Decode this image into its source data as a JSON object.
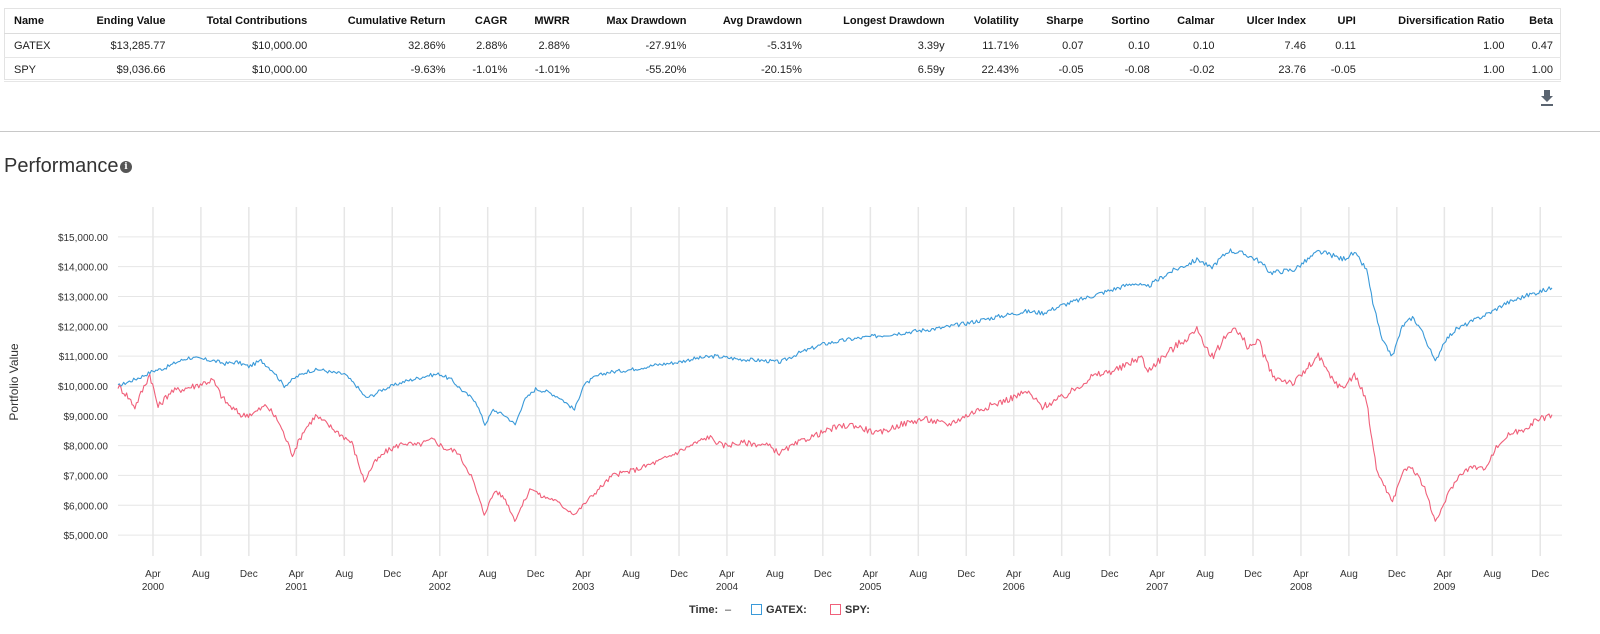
{
  "metrics_table": {
    "columns": [
      "Name",
      "Ending Value",
      "Total Contributions",
      "Cumulative Return",
      "CAGR",
      "MWRR",
      "Max Drawdown",
      "Avg Drawdown",
      "Longest Drawdown",
      "Volatility",
      "Sharpe",
      "Sortino",
      "Calmar",
      "Ulcer Index",
      "UPI",
      "Diversification Ratio",
      "Beta"
    ],
    "rows": [
      [
        "GATEX",
        "$13,285.77",
        "$10,000.00",
        "32.86%",
        "2.88%",
        "2.88%",
        "-27.91%",
        "-5.31%",
        "3.39y",
        "11.71%",
        "0.07",
        "0.10",
        "0.10",
        "7.46",
        "0.11",
        "1.00",
        "0.47"
      ],
      [
        "SPY",
        "$9,036.66",
        "$10,000.00",
        "-9.63%",
        "-1.01%",
        "-1.01%",
        "-55.20%",
        "-20.15%",
        "6.59y",
        "22.43%",
        "-0.05",
        "-0.08",
        "-0.02",
        "23.76",
        "-0.05",
        "1.00",
        "1.00"
      ]
    ]
  },
  "download_icon": "download-icon",
  "section": {
    "title": "Performance",
    "info_icon": "i"
  },
  "legend": {
    "time_label": "Time:",
    "time_value": "–",
    "gatex_label": "GATEX:",
    "spy_label": "SPY:"
  },
  "chart_data": {
    "type": "line",
    "ylabel": "Portfolio Value",
    "xlabel": "",
    "ylim": [
      4500,
      16000
    ],
    "y_ticks": [
      5000,
      6000,
      7000,
      8000,
      9000,
      10000,
      11000,
      12000,
      13000,
      14000,
      15000
    ],
    "y_tick_labels": [
      "$5,000.00",
      "$6,000.00",
      "$7,000.00",
      "$8,000.00",
      "$9,000.00",
      "$10,000.00",
      "$11,000.00",
      "$12,000.00",
      "$13,000.00",
      "$14,000.00",
      "$15,000.00"
    ],
    "x_range": [
      "2000-01-03",
      "2009-12-31"
    ],
    "x_ticks": [
      {
        "date": "2000-04-01",
        "month": "Apr",
        "year": "2000"
      },
      {
        "date": "2000-08-01",
        "month": "Aug",
        "year": ""
      },
      {
        "date": "2000-12-01",
        "month": "Dec",
        "year": ""
      },
      {
        "date": "2001-04-01",
        "month": "Apr",
        "year": "2001"
      },
      {
        "date": "2001-08-01",
        "month": "Aug",
        "year": ""
      },
      {
        "date": "2001-12-01",
        "month": "Dec",
        "year": ""
      },
      {
        "date": "2002-04-01",
        "month": "Apr",
        "year": "2002"
      },
      {
        "date": "2002-08-01",
        "month": "Aug",
        "year": ""
      },
      {
        "date": "2002-12-01",
        "month": "Dec",
        "year": ""
      },
      {
        "date": "2003-04-01",
        "month": "Apr",
        "year": "2003"
      },
      {
        "date": "2003-08-01",
        "month": "Aug",
        "year": ""
      },
      {
        "date": "2003-12-01",
        "month": "Dec",
        "year": ""
      },
      {
        "date": "2004-04-01",
        "month": "Apr",
        "year": "2004"
      },
      {
        "date": "2004-08-01",
        "month": "Aug",
        "year": ""
      },
      {
        "date": "2004-12-01",
        "month": "Dec",
        "year": ""
      },
      {
        "date": "2005-04-01",
        "month": "Apr",
        "year": "2005"
      },
      {
        "date": "2005-08-01",
        "month": "Aug",
        "year": ""
      },
      {
        "date": "2005-12-01",
        "month": "Dec",
        "year": ""
      },
      {
        "date": "2006-04-01",
        "month": "Apr",
        "year": "2006"
      },
      {
        "date": "2006-08-01",
        "month": "Aug",
        "year": ""
      },
      {
        "date": "2006-12-01",
        "month": "Dec",
        "year": ""
      },
      {
        "date": "2007-04-01",
        "month": "Apr",
        "year": "2007"
      },
      {
        "date": "2007-08-01",
        "month": "Aug",
        "year": ""
      },
      {
        "date": "2007-12-01",
        "month": "Dec",
        "year": ""
      },
      {
        "date": "2008-04-01",
        "month": "Apr",
        "year": "2008"
      },
      {
        "date": "2008-08-01",
        "month": "Aug",
        "year": ""
      },
      {
        "date": "2008-12-01",
        "month": "Dec",
        "year": ""
      },
      {
        "date": "2009-04-01",
        "month": "Apr",
        "year": "2009"
      },
      {
        "date": "2009-08-01",
        "month": "Aug",
        "year": ""
      },
      {
        "date": "2009-12-01",
        "month": "Dec",
        "year": ""
      }
    ],
    "grid": true,
    "legend_position": "bottom-center",
    "series": [
      {
        "name": "GATEX",
        "color": "#3a9ad9",
        "points": [
          [
            "2000-01-03",
            10000
          ],
          [
            "2000-02-01",
            10150
          ],
          [
            "2000-03-01",
            10300
          ],
          [
            "2000-04-01",
            10500
          ],
          [
            "2000-05-01",
            10600
          ],
          [
            "2000-06-01",
            10800
          ],
          [
            "2000-07-01",
            10950
          ],
          [
            "2000-08-01",
            10900
          ],
          [
            "2000-09-01",
            10850
          ],
          [
            "2000-10-01",
            10750
          ],
          [
            "2000-11-01",
            10800
          ],
          [
            "2000-12-01",
            10650
          ],
          [
            "2001-01-01",
            10850
          ],
          [
            "2001-02-01",
            10500
          ],
          [
            "2001-03-01",
            10000
          ],
          [
            "2001-04-01",
            10300
          ],
          [
            "2001-05-01",
            10500
          ],
          [
            "2001-06-01",
            10550
          ],
          [
            "2001-07-01",
            10450
          ],
          [
            "2001-08-01",
            10400
          ],
          [
            "2001-09-01",
            10000
          ],
          [
            "2001-09-25",
            9600
          ],
          [
            "2001-10-15",
            9700
          ],
          [
            "2001-11-01",
            9850
          ],
          [
            "2001-12-01",
            10000
          ],
          [
            "2002-01-01",
            10150
          ],
          [
            "2002-02-01",
            10250
          ],
          [
            "2002-03-01",
            10350
          ],
          [
            "2002-04-01",
            10400
          ],
          [
            "2002-05-01",
            10200
          ],
          [
            "2002-06-01",
            9800
          ],
          [
            "2002-07-01",
            9500
          ],
          [
            "2002-07-25",
            8700
          ],
          [
            "2002-08-15",
            9200
          ],
          [
            "2002-09-15",
            9000
          ],
          [
            "2002-10-10",
            8700
          ],
          [
            "2002-11-01",
            9500
          ],
          [
            "2002-12-01",
            9900
          ],
          [
            "2003-01-01",
            9800
          ],
          [
            "2003-02-01",
            9600
          ],
          [
            "2003-03-10",
            9200
          ],
          [
            "2003-04-01",
            10000
          ],
          [
            "2003-05-01",
            10300
          ],
          [
            "2003-06-01",
            10450
          ],
          [
            "2003-08-01",
            10550
          ],
          [
            "2003-10-01",
            10700
          ],
          [
            "2003-12-01",
            10800
          ],
          [
            "2004-01-01",
            10900
          ],
          [
            "2004-03-01",
            11000
          ],
          [
            "2004-05-01",
            10900
          ],
          [
            "2004-07-01",
            10850
          ],
          [
            "2004-08-15",
            10800
          ],
          [
            "2004-10-01",
            11100
          ],
          [
            "2004-12-01",
            11400
          ],
          [
            "2005-02-01",
            11550
          ],
          [
            "2005-04-01",
            11650
          ],
          [
            "2005-06-01",
            11750
          ],
          [
            "2005-08-01",
            11850
          ],
          [
            "2005-10-01",
            11950
          ],
          [
            "2005-12-01",
            12100
          ],
          [
            "2006-03-01",
            12350
          ],
          [
            "2006-05-01",
            12500
          ],
          [
            "2006-06-15",
            12450
          ],
          [
            "2006-08-01",
            12700
          ],
          [
            "2006-10-01",
            12950
          ],
          [
            "2006-12-01",
            13200
          ],
          [
            "2007-02-01",
            13450
          ],
          [
            "2007-03-05",
            13300
          ],
          [
            "2007-05-01",
            13800
          ],
          [
            "2007-07-15",
            14250
          ],
          [
            "2007-08-15",
            13950
          ],
          [
            "2007-10-01",
            14550
          ],
          [
            "2007-11-15",
            14400
          ],
          [
            "2007-12-15",
            14200
          ],
          [
            "2008-01-15",
            13800
          ],
          [
            "2008-03-15",
            13900
          ],
          [
            "2008-05-15",
            14500
          ],
          [
            "2008-06-15",
            14400
          ],
          [
            "2008-07-15",
            14250
          ],
          [
            "2008-08-15",
            14450
          ],
          [
            "2008-09-15",
            13900
          ],
          [
            "2008-10-01",
            12800
          ],
          [
            "2008-10-25",
            11500
          ],
          [
            "2008-11-20",
            11000
          ],
          [
            "2008-12-15",
            12000
          ],
          [
            "2009-01-10",
            12300
          ],
          [
            "2009-02-01",
            11900
          ],
          [
            "2009-03-09",
            10800
          ],
          [
            "2009-04-01",
            11500
          ],
          [
            "2009-05-01",
            11900
          ],
          [
            "2009-06-01",
            12100
          ],
          [
            "2009-07-01",
            12300
          ],
          [
            "2009-08-01",
            12500
          ],
          [
            "2009-09-01",
            12750
          ],
          [
            "2009-10-01",
            12900
          ],
          [
            "2009-11-01",
            13050
          ],
          [
            "2009-12-31",
            13286
          ]
        ]
      },
      {
        "name": "SPY",
        "color": "#f0607a",
        "points": [
          [
            "2000-01-03",
            10000
          ],
          [
            "2000-01-25",
            9700
          ],
          [
            "2000-02-15",
            9300
          ],
          [
            "2000-03-24",
            10400
          ],
          [
            "2000-04-14",
            9300
          ],
          [
            "2000-05-15",
            9800
          ],
          [
            "2000-06-15",
            9900
          ],
          [
            "2000-07-15",
            10000
          ],
          [
            "2000-08-31",
            10200
          ],
          [
            "2000-09-25",
            9600
          ],
          [
            "2000-10-15",
            9300
          ],
          [
            "2000-11-15",
            9000
          ],
          [
            "2000-12-15",
            9100
          ],
          [
            "2001-01-15",
            9350
          ],
          [
            "2001-02-15",
            8800
          ],
          [
            "2001-03-22",
            7700
          ],
          [
            "2001-04-20",
            8500
          ],
          [
            "2001-05-20",
            9000
          ],
          [
            "2001-06-20",
            8700
          ],
          [
            "2001-07-20",
            8400
          ],
          [
            "2001-08-20",
            8100
          ],
          [
            "2001-09-21",
            6800
          ],
          [
            "2001-10-15",
            7400
          ],
          [
            "2001-11-15",
            7800
          ],
          [
            "2001-12-31",
            8100
          ],
          [
            "2002-01-31",
            8000
          ],
          [
            "2002-03-15",
            8200
          ],
          [
            "2002-04-15",
            7900
          ],
          [
            "2002-05-15",
            7800
          ],
          [
            "2002-06-20",
            7000
          ],
          [
            "2002-07-23",
            5700
          ],
          [
            "2002-08-20",
            6500
          ],
          [
            "2002-09-15",
            6200
          ],
          [
            "2002-10-09",
            5500
          ],
          [
            "2002-11-20",
            6600
          ],
          [
            "2002-12-15",
            6300
          ],
          [
            "2003-01-15",
            6200
          ],
          [
            "2003-02-15",
            5900
          ],
          [
            "2003-03-11",
            5700
          ],
          [
            "2003-04-15",
            6200
          ],
          [
            "2003-05-15",
            6600
          ],
          [
            "2003-06-15",
            7000
          ],
          [
            "2003-08-15",
            7200
          ],
          [
            "2003-10-15",
            7500
          ],
          [
            "2003-12-31",
            8000
          ],
          [
            "2004-02-15",
            8300
          ],
          [
            "2004-03-20",
            8000
          ],
          [
            "2004-05-15",
            8100
          ],
          [
            "2004-07-15",
            8000
          ],
          [
            "2004-08-12",
            7750
          ],
          [
            "2004-10-15",
            8200
          ],
          [
            "2004-12-31",
            8600
          ],
          [
            "2005-02-15",
            8700
          ],
          [
            "2005-04-20",
            8400
          ],
          [
            "2005-06-15",
            8700
          ],
          [
            "2005-08-15",
            8900
          ],
          [
            "2005-10-15",
            8700
          ],
          [
            "2005-12-31",
            9200
          ],
          [
            "2006-02-15",
            9400
          ],
          [
            "2006-05-05",
            9800
          ],
          [
            "2006-06-13",
            9300
          ],
          [
            "2006-08-15",
            9700
          ],
          [
            "2006-10-15",
            10300
          ],
          [
            "2006-12-31",
            10600
          ],
          [
            "2007-02-20",
            11000
          ],
          [
            "2007-03-05",
            10500
          ],
          [
            "2007-05-15",
            11300
          ],
          [
            "2007-07-15",
            11900
          ],
          [
            "2007-08-15",
            10900
          ],
          [
            "2007-10-10",
            12000
          ],
          [
            "2007-11-20",
            11300
          ],
          [
            "2007-12-15",
            11500
          ],
          [
            "2008-01-20",
            10300
          ],
          [
            "2008-03-15",
            10100
          ],
          [
            "2008-05-15",
            11000
          ],
          [
            "2008-06-15",
            10300
          ],
          [
            "2008-07-15",
            9900
          ],
          [
            "2008-08-15",
            10400
          ],
          [
            "2008-09-15",
            9500
          ],
          [
            "2008-10-10",
            7200
          ],
          [
            "2008-11-20",
            6100
          ],
          [
            "2008-12-15",
            7100
          ],
          [
            "2009-01-06",
            7300
          ],
          [
            "2009-02-10",
            6600
          ],
          [
            "2009-03-09",
            5400
          ],
          [
            "2009-04-15",
            6500
          ],
          [
            "2009-05-15",
            7100
          ],
          [
            "2009-06-15",
            7300
          ],
          [
            "2009-07-10",
            7200
          ],
          [
            "2009-08-15",
            8000
          ],
          [
            "2009-09-15",
            8400
          ],
          [
            "2009-10-15",
            8500
          ],
          [
            "2009-11-15",
            8800
          ],
          [
            "2009-12-31",
            9037
          ]
        ]
      }
    ]
  }
}
